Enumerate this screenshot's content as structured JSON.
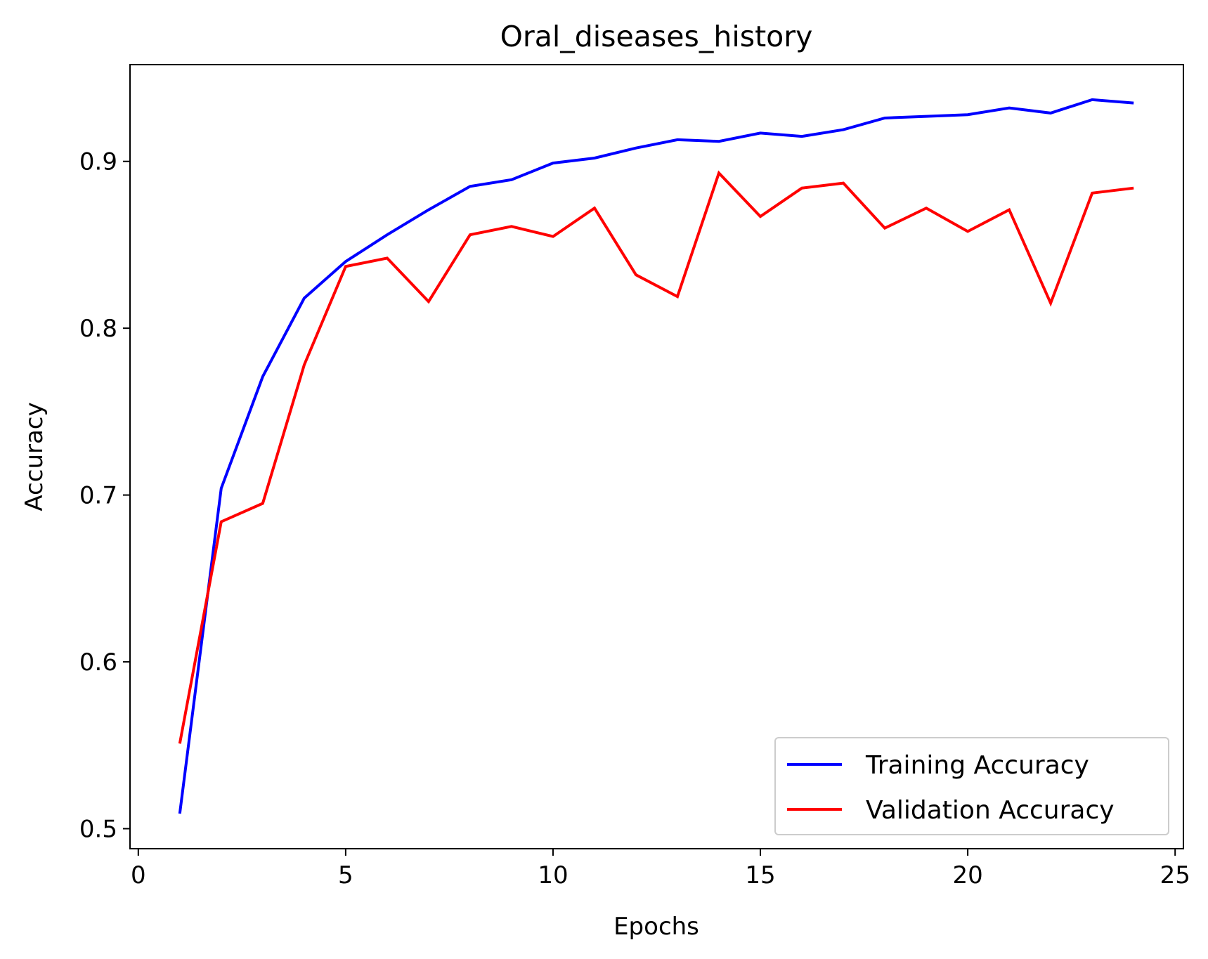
{
  "chart_data": {
    "type": "line",
    "title": "Oral_diseases_history",
    "xlabel": "Epochs",
    "ylabel": "Accuracy",
    "xlim": [
      -0.2,
      25.2
    ],
    "ylim": [
      0.488,
      0.958
    ],
    "xticks": [
      0,
      5,
      10,
      15,
      20,
      25
    ],
    "yticks": [
      0.5,
      0.6,
      0.7,
      0.8,
      0.9
    ],
    "xtick_labels": [
      "0",
      "5",
      "10",
      "15",
      "20",
      "25"
    ],
    "ytick_labels": [
      "0.5",
      "0.6",
      "0.7",
      "0.8",
      "0.9"
    ],
    "x": [
      1,
      2,
      3,
      4,
      5,
      6,
      7,
      8,
      9,
      10,
      11,
      12,
      13,
      14,
      15,
      16,
      17,
      18,
      19,
      20,
      21,
      22,
      23,
      24
    ],
    "series": [
      {
        "name": "Training Accuracy",
        "color": "#0000ff",
        "values": [
          0.509,
          0.704,
          0.771,
          0.818,
          0.84,
          0.856,
          0.871,
          0.885,
          0.889,
          0.899,
          0.902,
          0.908,
          0.913,
          0.912,
          0.917,
          0.915,
          0.919,
          0.926,
          0.927,
          0.928,
          0.932,
          0.929,
          0.937,
          0.935
        ]
      },
      {
        "name": "Validation Accuracy",
        "color": "#ff0000",
        "values": [
          0.551,
          0.684,
          0.695,
          0.778,
          0.837,
          0.842,
          0.816,
          0.856,
          0.861,
          0.855,
          0.872,
          0.832,
          0.819,
          0.893,
          0.867,
          0.884,
          0.887,
          0.86,
          0.872,
          0.858,
          0.871,
          0.815,
          0.881,
          0.884
        ]
      }
    ],
    "legend": {
      "position": "lower-right"
    },
    "grid": false
  }
}
